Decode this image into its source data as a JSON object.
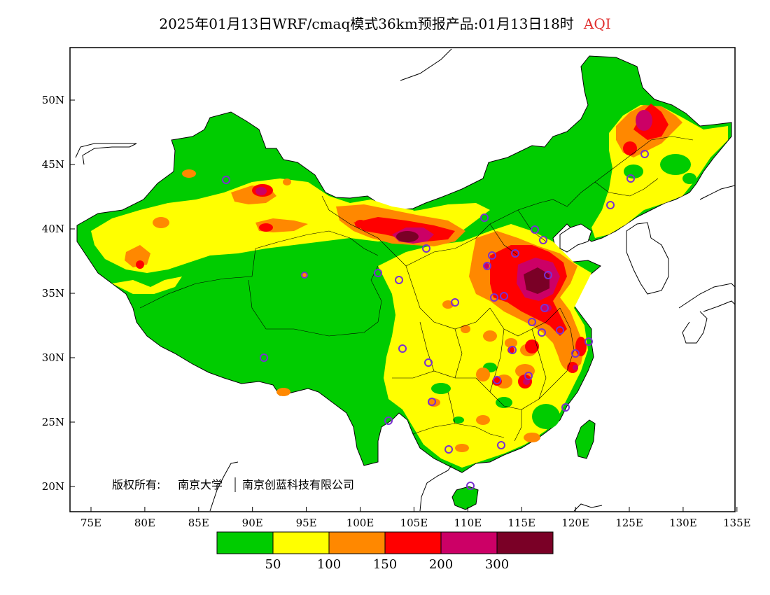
{
  "title": {
    "main": "2025年01月13日WRF/cmaq模式36km预报产品:01月13日18时",
    "suffix": "AQI",
    "suffix_color": "#e03030"
  },
  "axes": {
    "lon_ticks": [
      "75E",
      "80E",
      "85E",
      "90E",
      "95E",
      "100E",
      "105E",
      "110E",
      "115E",
      "120E",
      "125E",
      "130E",
      "135E"
    ],
    "lat_ticks": [
      "50N",
      "45N",
      "40N",
      "35N",
      "30N",
      "25N",
      "20N"
    ]
  },
  "credit": {
    "prefix": "版权所有:",
    "org1": "南京大学",
    "org2": "南京创蓝科技有限公司"
  },
  "legend": {
    "colors": [
      "#00cc00",
      "#ffff00",
      "#ff8800",
      "#ff0000",
      "#cc0066",
      "#7a0026"
    ],
    "labels": [
      "50",
      "100",
      "150",
      "200",
      "300"
    ]
  },
  "map_colors": {
    "good": "#00cc00",
    "moderate": "#ffff00",
    "usg": "#ff8800",
    "unhealthy": "#ff0000",
    "very_unhealthy": "#cc0066",
    "hazardous": "#7a0026",
    "station": "#7a30d0"
  }
}
